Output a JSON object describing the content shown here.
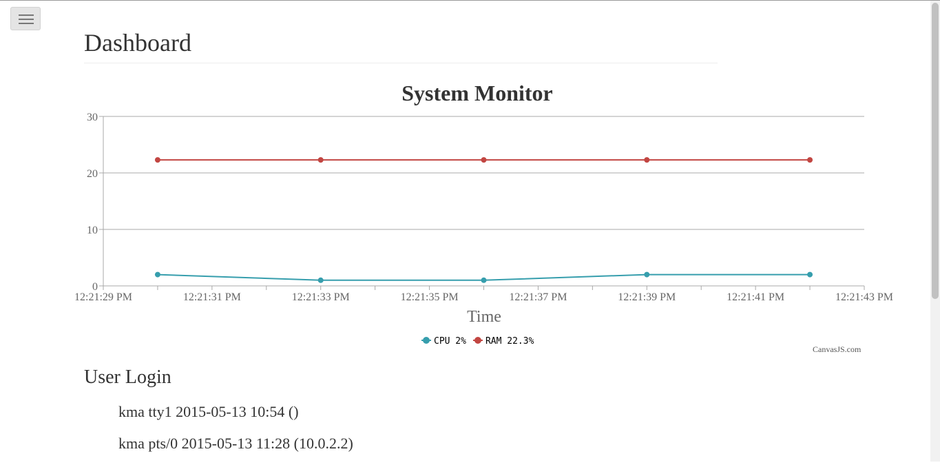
{
  "nav": {
    "menu_icon": "hamburger-icon"
  },
  "page": {
    "title": "Dashboard"
  },
  "chart_data": {
    "type": "line",
    "title": "System Monitor",
    "xlabel": "Time",
    "ylabel": "",
    "ylim": [
      0,
      30
    ],
    "yticks": [
      0,
      10,
      20,
      30
    ],
    "grid": true,
    "legend_placement": "bottom-center",
    "x_tick_labels": [
      "12:21:29 PM",
      "12:21:31 PM",
      "12:21:33 PM",
      "12:21:35 PM",
      "12:21:37 PM",
      "12:21:39 PM",
      "12:21:41 PM",
      "12:21:43 PM"
    ],
    "x_range_seconds": [
      29,
      43
    ],
    "x": [
      "12:21:30 PM",
      "12:21:33 PM",
      "12:21:36 PM",
      "12:21:39 PM",
      "12:21:42 PM"
    ],
    "x_seconds": [
      30,
      33,
      36,
      39,
      42
    ],
    "series": [
      {
        "name": "CPU",
        "legend_label": "CPU 2%",
        "color": "#369EAD",
        "values": [
          2,
          1,
          1,
          2,
          2
        ]
      },
      {
        "name": "RAM",
        "legend_label": "RAM 22.3%",
        "color": "#C24642",
        "values": [
          22.3,
          22.3,
          22.3,
          22.3,
          22.3
        ]
      }
    ],
    "credit": "CanvasJS.com"
  },
  "user_login": {
    "title": "User Login",
    "entries": [
      "kma tty1 2015-05-13 10:54 ()",
      "kma pts/0 2015-05-13 11:28 (10.0.2.2)"
    ]
  }
}
